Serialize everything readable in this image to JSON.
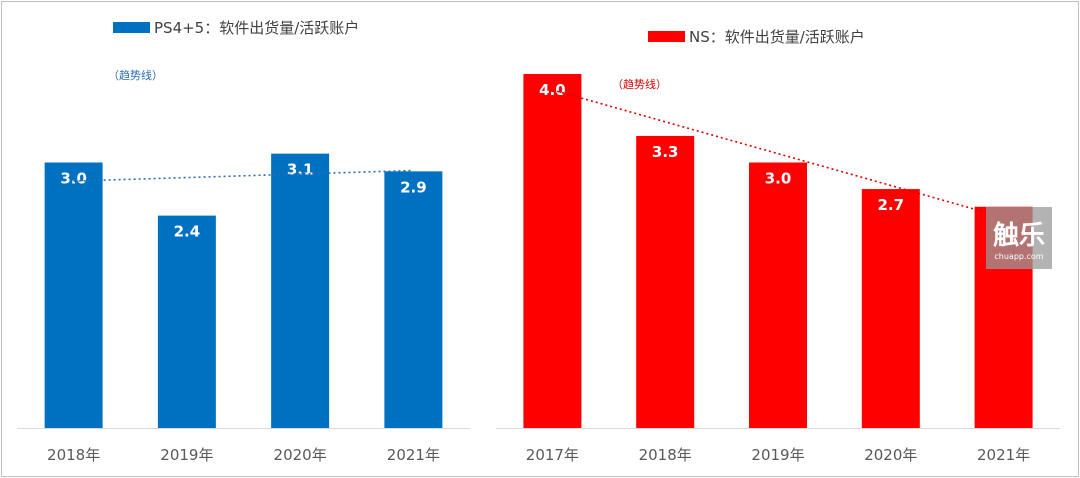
{
  "chart_data": [
    {
      "type": "bar",
      "legend": "PS4+5：软件出货量/活跃账户",
      "color": "#0070c0",
      "categories": [
        "2018年",
        "2019年",
        "2020年",
        "2021年"
      ],
      "values": [
        3.0,
        2.4,
        3.1,
        2.9
      ],
      "value_labels": [
        "3.0",
        "2.4",
        "3.1",
        "2.9"
      ],
      "trendline": true,
      "trend_label": "（趋势线）",
      "ylim": [
        0,
        4.3
      ]
    },
    {
      "type": "bar",
      "legend": "NS：软件出货量/活跃账户",
      "color": "#ff0000",
      "categories": [
        "2017年",
        "2018年",
        "2019年",
        "2020年",
        "2021年"
      ],
      "values": [
        4.0,
        3.3,
        3.0,
        2.7,
        2.5
      ],
      "value_labels": [
        "4.0",
        "3.3",
        "3.0",
        "2.7",
        ""
      ],
      "trendline": true,
      "trend_label": "（趋势线）",
      "ylim": [
        0,
        4.3
      ]
    }
  ],
  "watermark": {
    "main": "触乐",
    "sub": "chuapp.com"
  }
}
